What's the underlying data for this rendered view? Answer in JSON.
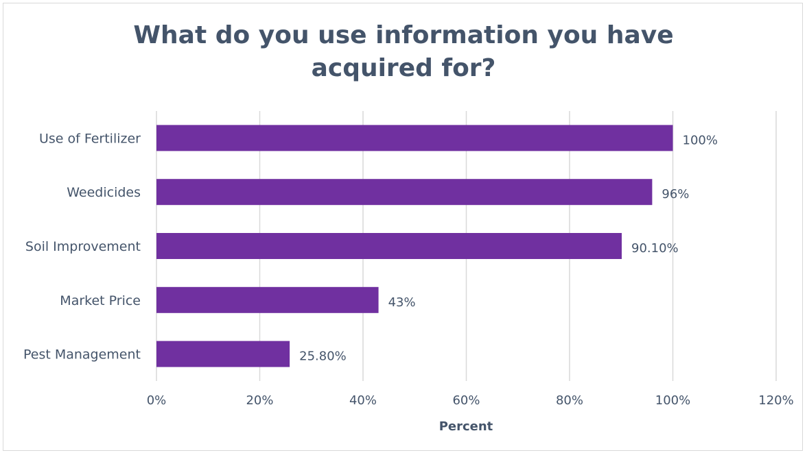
{
  "chart_data": {
    "type": "bar",
    "orientation": "horizontal",
    "title": "What do you use information you have acquired for?",
    "xlabel": "Percent",
    "ylabel": "",
    "categories": [
      "Use of Fertilizer",
      "Weedicides",
      "Soil Improvement",
      "Market Price",
      "Pest Management"
    ],
    "values": [
      100,
      96,
      90.1,
      43,
      25.8
    ],
    "data_labels": [
      "100%",
      "96%",
      "90.10%",
      "43%",
      "25.80%"
    ],
    "xlim": [
      0,
      120
    ],
    "xticks": [
      0,
      20,
      40,
      60,
      80,
      100,
      120
    ],
    "xtick_labels": [
      "0%",
      "20%",
      "40%",
      "60%",
      "80%",
      "100%",
      "120%"
    ],
    "grid": "vertical",
    "legend": "none",
    "colors": {
      "bar": "#7030a0",
      "gridline": "#d9d9d9",
      "text": "#44546a"
    }
  }
}
